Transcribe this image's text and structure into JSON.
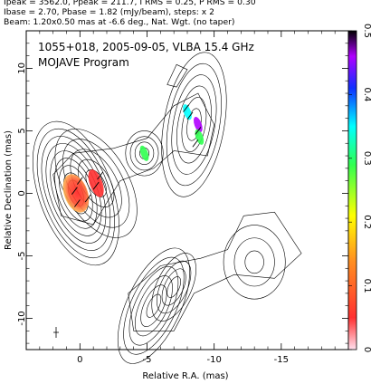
{
  "header": {
    "line1": "Ipeak = 3562.0, Ppeak = 211.7, I RMS = 0.25, P RMS = 0.30",
    "line2": "Ibase = 2.70, Pbase = 1.82 (mJy/beam), steps: x 2",
    "line3": "Beam: 1.20x0.50 mas at -6.6 deg., Nat. Wgt. (no taper)"
  },
  "panel": {
    "title": "1055+018, 2005-09-05, VLBA 15.4 GHz",
    "program": "MOJAVE Program"
  },
  "chart_data": {
    "type": "heatmap",
    "xlabel": "Relative R.A. (mas)",
    "ylabel": "Relative Declination (mas)",
    "xlim": [
      4,
      -20
    ],
    "ylim": [
      -12.5,
      13
    ],
    "xticks": [
      0,
      -5,
      -10,
      -15
    ],
    "yticks": [
      10,
      5,
      0,
      -5,
      -10
    ],
    "colorbar": {
      "min": 0,
      "max": 0.5,
      "ticks": [
        0,
        0.1,
        0.2,
        0.3,
        0.4,
        0.5
      ]
    },
    "stats": {
      "Ipeak": 3562.0,
      "Ppeak": 211.7,
      "I_RMS": 0.25,
      "P_RMS": 0.3,
      "Ibase": 2.7,
      "Pbase": 1.82,
      "step_factor": 2,
      "beam_major_mas": 1.2,
      "beam_minor_mas": 0.5,
      "beam_pa_deg": -6.6
    },
    "components": [
      {
        "x": 0.3,
        "y": 0.0,
        "frac_pol": 0.08
      },
      {
        "x": -1.2,
        "y": 0.8,
        "frac_pol": 0.05
      },
      {
        "x": -4.8,
        "y": 3.2,
        "frac_pol": 0.32
      },
      {
        "x": -8.0,
        "y": 6.5,
        "frac_pol": 0.4
      },
      {
        "x": -8.8,
        "y": 5.5,
        "frac_pol": 0.48
      },
      {
        "x": -8.9,
        "y": 4.5,
        "frac_pol": 0.3
      },
      {
        "x": -5.5,
        "y": -9.0,
        "frac_pol": 0.0
      },
      {
        "x": -7.0,
        "y": -7.5,
        "frac_pol": 0.0
      },
      {
        "x": -13.0,
        "y": -5.5,
        "frac_pol": 0.0
      }
    ]
  }
}
